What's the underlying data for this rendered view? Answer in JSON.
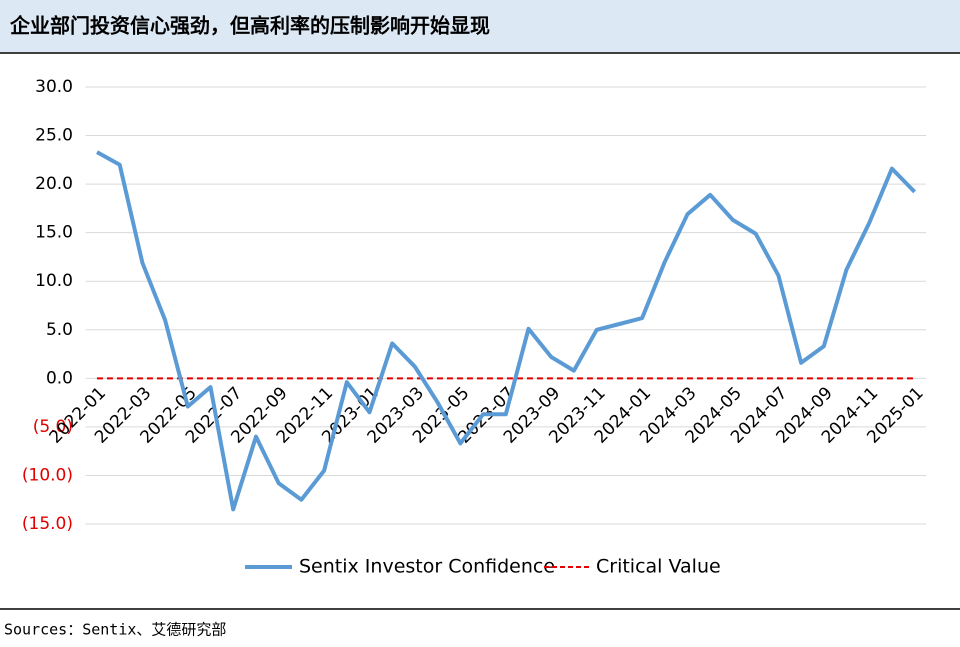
{
  "chart_data": {
    "type": "line",
    "title": "企业部门投资信心强劲，但高利率的压制影响开始显现",
    "source": "Sources：Sentix、艾德研究部",
    "categories": [
      "2022-01",
      null,
      "2022-03",
      null,
      "2022-05",
      null,
      "2022-07",
      null,
      "2022-09",
      null,
      "2022-11",
      null,
      "2023-01",
      null,
      "2023-03",
      null,
      "2023-05",
      null,
      "2023-07",
      null,
      "2023-09",
      null,
      "2023-11",
      null,
      "2024-01",
      null,
      "2024-03",
      null,
      "2024-05",
      null,
      "2024-07",
      null,
      "2024-09",
      null,
      "2024-11",
      null,
      "2025-01"
    ],
    "series": [
      {
        "name": "Sentix Investor Confidence",
        "color": "#5b9bd5",
        "values": [
          23.3,
          22.0,
          11.9,
          6.0,
          -2.9,
          -0.9,
          -13.5,
          -6.0,
          -10.8,
          -12.5,
          -9.5,
          -0.4,
          -3.5,
          3.6,
          1.2,
          -2.5,
          -6.7,
          -3.7,
          -3.7,
          5.1,
          2.2,
          0.8,
          5.0,
          5.6,
          6.2,
          12.0,
          16.9,
          18.9,
          16.3,
          14.9,
          10.6,
          1.6,
          3.3,
          11.2,
          16.0,
          21.6,
          19.2
        ]
      }
    ],
    "reference_line": {
      "name": "Critical Value",
      "value": 0,
      "color": "#e00000"
    },
    "ylim": [
      -15,
      30
    ],
    "yticks": [
      {
        "value": -15,
        "label": "(15.0)"
      },
      {
        "value": -10,
        "label": "(10.0)"
      },
      {
        "value": -5,
        "label": "(5.0)"
      },
      {
        "value": 0,
        "label": "0.0"
      },
      {
        "value": 5,
        "label": "5.0"
      },
      {
        "value": 10,
        "label": "10.0"
      },
      {
        "value": 15,
        "label": "15.0"
      },
      {
        "value": 20,
        "label": "20.0"
      },
      {
        "value": 25,
        "label": "25.0"
      },
      {
        "value": 30,
        "label": "30.0"
      }
    ],
    "negative_tick_color": "#e00000",
    "grid": true
  }
}
